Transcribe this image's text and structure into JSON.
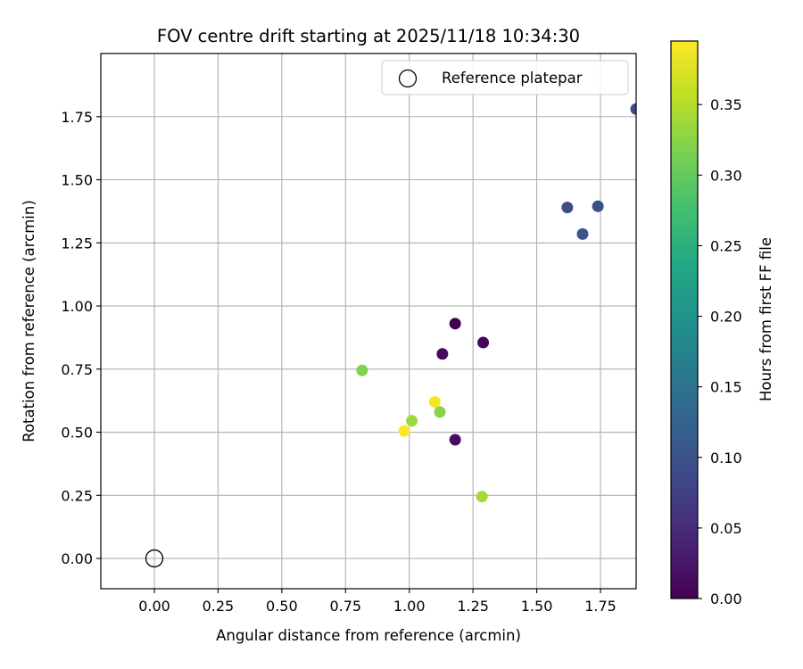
{
  "chart_data": {
    "type": "scatter",
    "title": "FOV centre drift starting at 2025/11/18 10:34:30",
    "xlabel": "Angular distance from reference (arcmin)",
    "ylabel": "Rotation from reference (arcmin)",
    "xlim": [
      -0.21,
      1.89
    ],
    "ylim": [
      -0.12,
      2.0
    ],
    "grid": true,
    "x_ticks": [
      0.0,
      0.25,
      0.5,
      0.75,
      1.0,
      1.25,
      1.5,
      1.75
    ],
    "x_tick_labels": [
      "0.00",
      "0.25",
      "0.50",
      "0.75",
      "1.00",
      "1.25",
      "1.50",
      "1.75"
    ],
    "y_ticks": [
      0.0,
      0.25,
      0.5,
      0.75,
      1.0,
      1.25,
      1.5,
      1.75
    ],
    "y_tick_labels": [
      "0.00",
      "0.25",
      "0.50",
      "0.75",
      "1.00",
      "1.25",
      "1.50",
      "1.75"
    ],
    "legend": {
      "placement": "top-right",
      "entries": [
        "Reference platepar"
      ]
    },
    "reference": {
      "x": 0.0,
      "y": 0.0,
      "label": "Reference platepar"
    },
    "colorbar": {
      "label": "Hours from first FF file",
      "range": [
        0.0,
        0.395
      ],
      "ticks": [
        0.0,
        0.05,
        0.1,
        0.15,
        0.2,
        0.25,
        0.3,
        0.35
      ],
      "tick_labels": [
        "0.00",
        "0.05",
        "0.10",
        "0.15",
        "0.20",
        "0.25",
        "0.30",
        "0.35"
      ],
      "colormap": "viridis"
    },
    "points": [
      {
        "x": 1.18,
        "y": 0.93,
        "hours": 0.0
      },
      {
        "x": 1.29,
        "y": 0.855,
        "hours": 0.005
      },
      {
        "x": 1.13,
        "y": 0.81,
        "hours": 0.01
      },
      {
        "x": 1.18,
        "y": 0.47,
        "hours": 0.015
      },
      {
        "x": 1.62,
        "y": 1.39,
        "hours": 0.09
      },
      {
        "x": 1.74,
        "y": 1.395,
        "hours": 0.095
      },
      {
        "x": 1.68,
        "y": 1.285,
        "hours": 0.1
      },
      {
        "x": 1.89,
        "y": 1.78,
        "hours": 0.09
      },
      {
        "x": 0.815,
        "y": 0.745,
        "hours": 0.32
      },
      {
        "x": 1.12,
        "y": 0.58,
        "hours": 0.325
      },
      {
        "x": 1.01,
        "y": 0.545,
        "hours": 0.335
      },
      {
        "x": 1.285,
        "y": 0.245,
        "hours": 0.34
      },
      {
        "x": 1.1,
        "y": 0.62,
        "hours": 0.39
      },
      {
        "x": 0.98,
        "y": 0.505,
        "hours": 0.395
      }
    ],
    "colors": {
      "grid": "#b0b0b0",
      "axis": "#000000",
      "reference_edge": "#000000"
    }
  }
}
